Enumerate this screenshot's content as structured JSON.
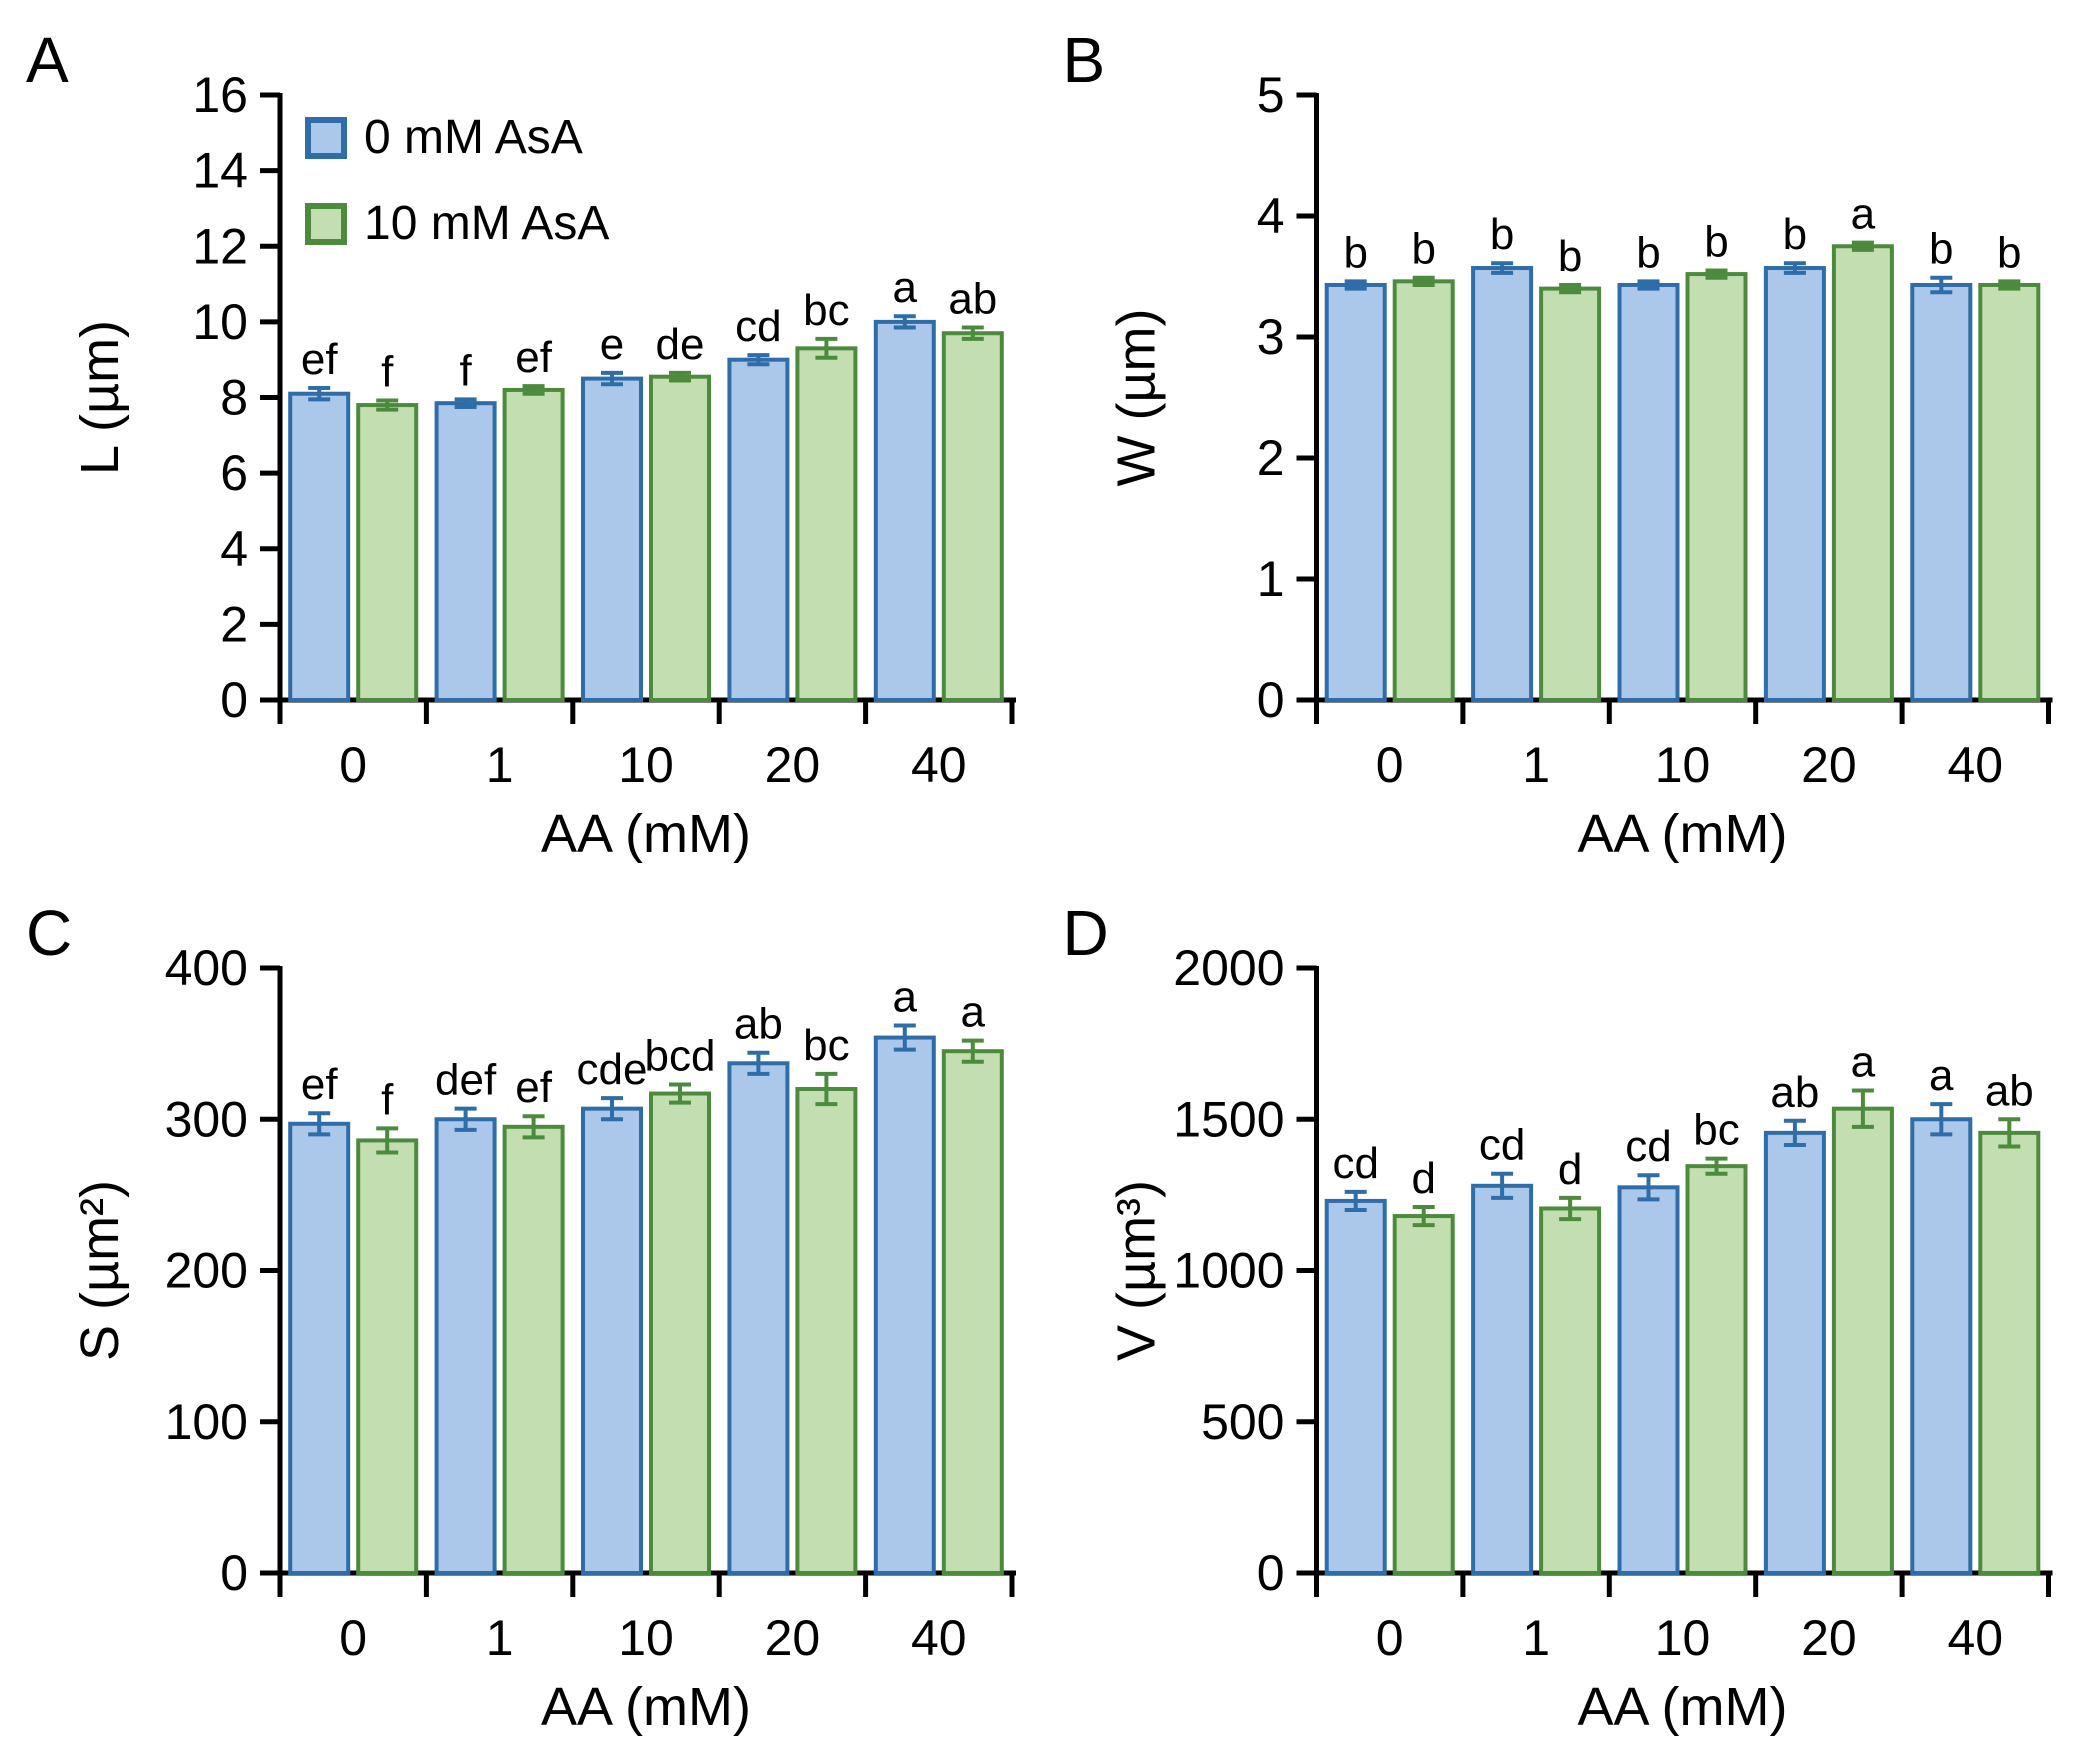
{
  "figure": {
    "background": "#ffffff",
    "series_styles": [
      {
        "name": "0 mM AsA",
        "fill": "#ABC7E9",
        "edge": "#2E6DA8"
      },
      {
        "name": "10 mM AsA",
        "fill": "#C3DFB2",
        "edge": "#4C8B3D"
      }
    ],
    "legend": {
      "items": [
        {
          "label": "0 mM AsA",
          "fill": "#ABC7E9",
          "edge": "#2E6DA8"
        },
        {
          "label": "10 mM AsA",
          "fill": "#C3DFB2",
          "edge": "#4C8B3D"
        }
      ],
      "position": "top-left-inside-panel-A"
    }
  },
  "chart_data": [
    {
      "panel": "A",
      "type": "bar",
      "ylabel": "L (µm)",
      "xlabel": "AA (mM)",
      "categories": [
        "0",
        "1",
        "10",
        "20",
        "40"
      ],
      "ylim": [
        0,
        16
      ],
      "yticks": [
        0,
        2,
        4,
        6,
        8,
        10,
        12,
        14,
        16
      ],
      "grid": false,
      "show_legend": true,
      "series": [
        {
          "name": "0 mM AsA",
          "values": [
            8.1,
            7.85,
            8.5,
            9.0,
            10.0
          ],
          "errors": [
            0.15,
            0.1,
            0.15,
            0.12,
            0.15
          ],
          "letters": [
            "ef",
            "f",
            "e",
            "cd",
            "a"
          ]
        },
        {
          "name": "10 mM AsA",
          "values": [
            7.8,
            8.2,
            8.55,
            9.3,
            9.7
          ],
          "errors": [
            0.12,
            0.1,
            0.1,
            0.25,
            0.15
          ],
          "letters": [
            "f",
            "ef",
            "de",
            "bc",
            "ab"
          ]
        }
      ]
    },
    {
      "panel": "B",
      "type": "bar",
      "ylabel": "W (µm)",
      "xlabel": "AA (mM)",
      "categories": [
        "0",
        "1",
        "10",
        "20",
        "40"
      ],
      "ylim": [
        0,
        5
      ],
      "yticks": [
        0,
        1,
        2,
        3,
        4,
        5
      ],
      "grid": false,
      "show_legend": false,
      "series": [
        {
          "name": "0 mM AsA",
          "values": [
            3.43,
            3.57,
            3.43,
            3.57,
            3.43
          ],
          "errors": [
            0.03,
            0.04,
            0.03,
            0.04,
            0.06
          ],
          "letters": [
            "b",
            "b",
            "b",
            "b",
            "b"
          ]
        },
        {
          "name": "10 mM AsA",
          "values": [
            3.46,
            3.4,
            3.52,
            3.75,
            3.43
          ],
          "errors": [
            0.03,
            0.03,
            0.03,
            0.03,
            0.03
          ],
          "letters": [
            "b",
            "b",
            "b",
            "a",
            "b"
          ]
        }
      ]
    },
    {
      "panel": "C",
      "type": "bar",
      "ylabel": "S (µm²)",
      "xlabel": "AA (mM)",
      "categories": [
        "0",
        "1",
        "10",
        "20",
        "40"
      ],
      "ylim": [
        0,
        400
      ],
      "yticks": [
        0,
        100,
        200,
        300,
        400
      ],
      "grid": false,
      "show_legend": false,
      "series": [
        {
          "name": "0 mM AsA",
          "values": [
            297,
            300,
            307,
            337,
            354
          ],
          "errors": [
            7,
            7,
            7,
            7,
            8
          ],
          "letters": [
            "ef",
            "def",
            "cde",
            "ab",
            "a"
          ]
        },
        {
          "name": "10 mM AsA",
          "values": [
            286,
            295,
            317,
            320,
            345
          ],
          "errors": [
            8,
            7,
            6,
            10,
            7
          ],
          "letters": [
            "f",
            "ef",
            "bcd",
            "bc",
            "a"
          ]
        }
      ]
    },
    {
      "panel": "D",
      "type": "bar",
      "ylabel": "V (µm³)",
      "xlabel": "AA (mM)",
      "categories": [
        "0",
        "1",
        "10",
        "20",
        "40"
      ],
      "ylim": [
        0,
        2000
      ],
      "yticks": [
        0,
        500,
        1000,
        1500,
        2000
      ],
      "grid": false,
      "show_legend": false,
      "series": [
        {
          "name": "0 mM AsA",
          "values": [
            1230,
            1280,
            1275,
            1455,
            1500
          ],
          "errors": [
            30,
            40,
            40,
            40,
            50
          ],
          "letters": [
            "cd",
            "cd",
            "cd",
            "ab",
            "a"
          ]
        },
        {
          "name": "10 mM AsA",
          "values": [
            1180,
            1205,
            1345,
            1535,
            1455
          ],
          "errors": [
            30,
            35,
            25,
            60,
            45
          ],
          "letters": [
            "d",
            "d",
            "bc",
            "a",
            "ab"
          ]
        }
      ]
    }
  ]
}
